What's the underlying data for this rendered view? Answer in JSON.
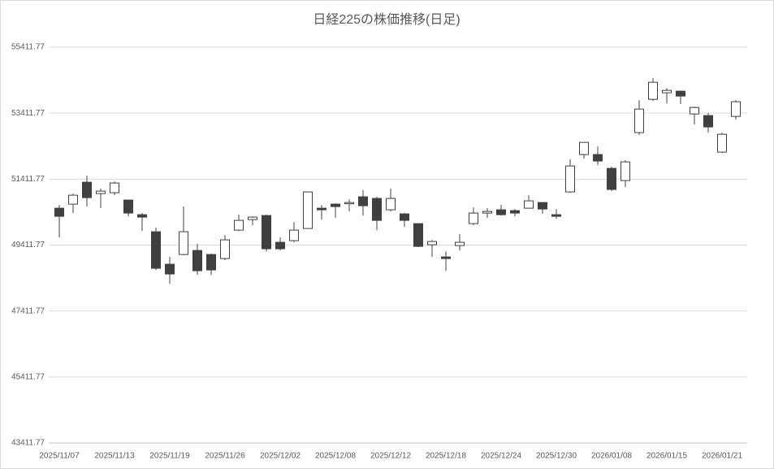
{
  "chart_data": {
    "type": "candlestick",
    "title": "日経225の株価推移(日足)",
    "categories": [
      "2025/11/07",
      null,
      null,
      null,
      "2025/11/13",
      null,
      null,
      null,
      "2025/11/19",
      null,
      null,
      null,
      "2025/11/26",
      null,
      null,
      null,
      "2025/12/02",
      null,
      null,
      null,
      "2025/12/08",
      null,
      null,
      null,
      "2025/12/12",
      null,
      null,
      null,
      "2025/12/18",
      null,
      null,
      null,
      "2025/12/24",
      null,
      null,
      null,
      "2025/12/30",
      null,
      null,
      null,
      "2026/01/08",
      null,
      null,
      null,
      "2026/01/15",
      null,
      null,
      null,
      "2026/01/21",
      null
    ],
    "open": [
      50530,
      50653,
      51318,
      50973,
      50998,
      50776,
      50333,
      49816,
      48831,
      49126,
      49249,
      49126,
      49003,
      49865,
      50185,
      50308,
      49496,
      49545,
      49914,
      50530,
      50653,
      50678,
      50875,
      50826,
      50481,
      50358,
      50062,
      49422,
      49052,
      49397,
      50062,
      50382,
      50481,
      50456,
      50530,
      50702,
      50333,
      51023,
      52156,
      52156,
      51737,
      51367,
      52821,
      53830,
      54028,
      54077,
      53387,
      53338,
      52230,
      53313
    ],
    "high": [
      50629,
      50973,
      51515,
      51121,
      51343,
      50776,
      50382,
      49939,
      49052,
      50579,
      49446,
      49151,
      49717,
      50333,
      50284,
      50333,
      49643,
      50111,
      51023,
      50629,
      50678,
      50801,
      51072,
      50875,
      51121,
      50382,
      50062,
      49570,
      49225,
      49742,
      50555,
      50530,
      50629,
      50505,
      50924,
      50702,
      50505,
      52008,
      52525,
      52402,
      51786,
      51983,
      53806,
      54471,
      54175,
      54101,
      53609,
      53412,
      52821,
      53806
    ],
    "low": [
      49643,
      50382,
      50579,
      50530,
      50924,
      50284,
      49840,
      48658,
      48239,
      49102,
      48510,
      48510,
      48954,
      49840,
      50013,
      49225,
      49249,
      49496,
      49914,
      50185,
      50235,
      50432,
      50308,
      49865,
      50432,
      49964,
      49348,
      49052,
      48634,
      49249,
      50013,
      50235,
      50308,
      50284,
      50530,
      50358,
      50210,
      50998,
      52033,
      51835,
      51047,
      51170,
      52747,
      53781,
      53707,
      53683,
      53067,
      52821,
      52205,
      53215
    ],
    "close": [
      50284,
      50924,
      50850,
      51047,
      51294,
      50382,
      50259,
      48707,
      48535,
      49816,
      48634,
      48658,
      49570,
      50161,
      50259,
      49299,
      49299,
      49865,
      51023,
      50481,
      50579,
      50702,
      50604,
      50161,
      50826,
      50161,
      49372,
      49520,
      49003,
      49496,
      50382,
      50432,
      50333,
      50382,
      50752,
      50505,
      50284,
      51811,
      52525,
      51959,
      51097,
      51934,
      53535,
      54348,
      54101,
      53929,
      53584,
      52993,
      52771,
      53757
    ],
    "up_color": "#ffffff",
    "down_color": "#404040",
    "ylim": [
      43411.77,
      55411.77
    ],
    "yticks": [
      43411.77,
      45411.77,
      47411.77,
      49411.77,
      51411.77,
      53411.77,
      55411.77
    ],
    "grid": true
  }
}
